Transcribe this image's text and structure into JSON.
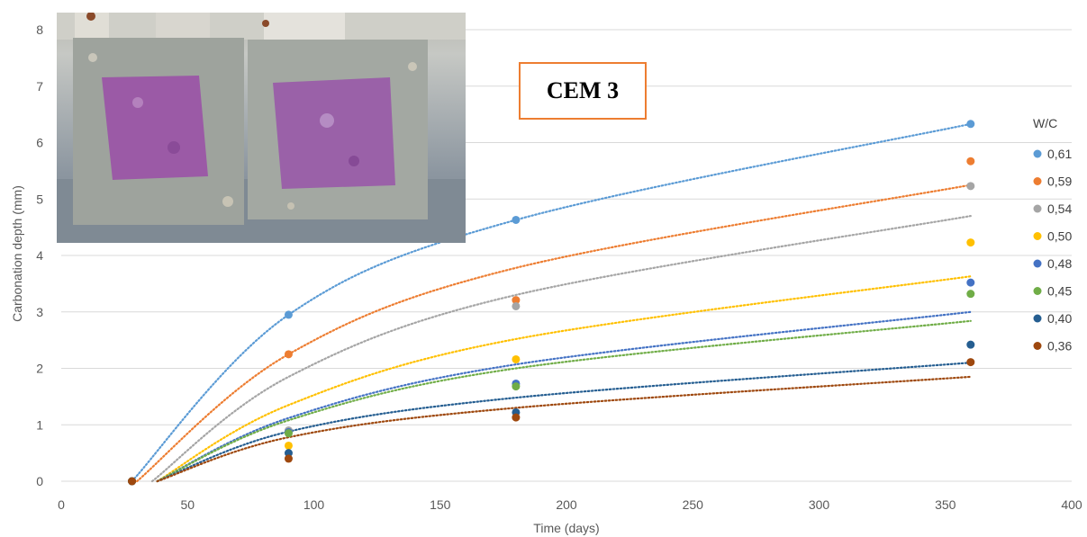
{
  "chart_data": {
    "type": "scatter",
    "title": "",
    "annotation": "CEM 3",
    "xlabel": "Time (days)",
    "ylabel": "Carbonation  depth  (mm)",
    "xlim": [
      0,
      400
    ],
    "ylim": [
      0,
      8
    ],
    "x_ticks": [
      "0",
      "50",
      "100",
      "150",
      "200",
      "250",
      "300",
      "350",
      "400"
    ],
    "y_ticks": [
      "0",
      "1",
      "2",
      "3",
      "4",
      "5",
      "6",
      "7",
      "8"
    ],
    "grid": "horizontal",
    "legend_title": "W/C",
    "legend_position": "right",
    "trendline": "dotted",
    "x": [
      28,
      90,
      180,
      360
    ],
    "series": [
      {
        "name": "0,61",
        "color": "#5B9BD5",
        "values": [
          0,
          2.95,
          4.63,
          6.33
        ],
        "trend": [
          [
            28,
            0
          ],
          [
            90,
            2.95
          ],
          [
            180,
            4.63
          ],
          [
            360,
            6.33
          ]
        ]
      },
      {
        "name": "0,59",
        "color": "#ED7D31",
        "values": [
          0,
          2.25,
          3.21,
          5.67
        ],
        "trend": [
          [
            30,
            0
          ],
          [
            90,
            2.25
          ],
          [
            180,
            3.78
          ],
          [
            360,
            5.25
          ]
        ]
      },
      {
        "name": "0,54",
        "color": "#A5A5A5",
        "values": [
          0,
          0.9,
          3.1,
          5.23
        ],
        "trend": [
          [
            36,
            0
          ],
          [
            90,
            1.85
          ],
          [
            180,
            3.3
          ],
          [
            360,
            4.7
          ]
        ]
      },
      {
        "name": "0,50",
        "color": "#FFC000",
        "values": [
          0,
          0.63,
          2.16,
          4.23
        ],
        "trend": [
          [
            38,
            0
          ],
          [
            90,
            1.35
          ],
          [
            180,
            2.52
          ],
          [
            360,
            3.63
          ]
        ]
      },
      {
        "name": "0,48",
        "color": "#4472C4",
        "values": [
          0,
          0.87,
          1.73,
          3.52
        ],
        "trend": [
          [
            38,
            0
          ],
          [
            90,
            1.12
          ],
          [
            180,
            2.07
          ],
          [
            360,
            3.0
          ]
        ]
      },
      {
        "name": "0,45",
        "color": "#70AD47",
        "values": [
          0,
          0.85,
          1.68,
          3.32
        ],
        "trend": [
          [
            38,
            0
          ],
          [
            90,
            1.08
          ],
          [
            180,
            2.0
          ],
          [
            360,
            2.84
          ]
        ]
      },
      {
        "name": "0,40",
        "color": "#255E91",
        "values": [
          0,
          0.5,
          1.22,
          2.42
        ],
        "trend": [
          [
            38,
            0
          ],
          [
            90,
            0.88
          ],
          [
            180,
            1.48
          ],
          [
            360,
            2.1
          ]
        ]
      },
      {
        "name": "0,36",
        "color": "#9E480E",
        "values": [
          0,
          0.4,
          1.13,
          2.11
        ],
        "trend": [
          [
            38,
            0
          ],
          [
            90,
            0.78
          ],
          [
            180,
            1.3
          ],
          [
            360,
            1.85
          ]
        ]
      }
    ]
  }
}
